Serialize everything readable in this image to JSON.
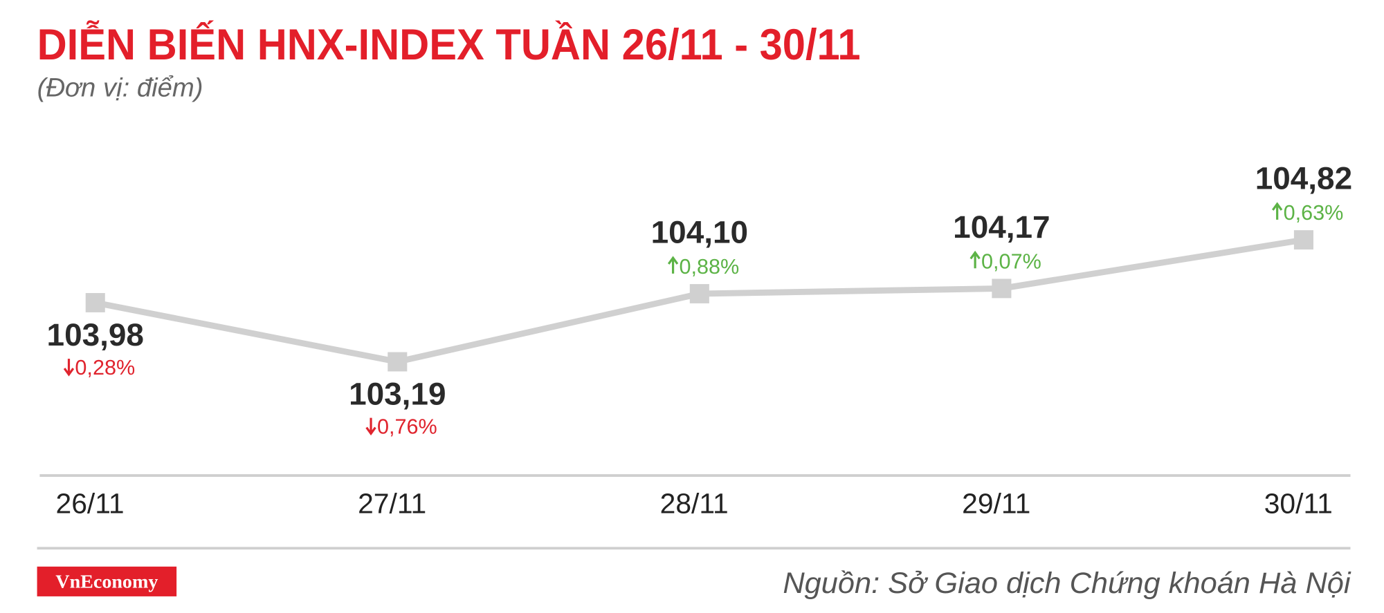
{
  "chart_data": {
    "type": "line",
    "title": "DIỄN BIẾN HNX-INDEX TUẦN 26/11 - 30/11",
    "subtitle": "(Đơn vị: điểm)",
    "categories": [
      "26/11",
      "27/11",
      "28/11",
      "29/11",
      "30/11"
    ],
    "values": [
      103.98,
      103.19,
      104.1,
      104.17,
      104.82
    ],
    "value_labels": [
      "103,98",
      "103,19",
      "104,10",
      "104,17",
      "104,82"
    ],
    "color": "#d0d0d0",
    "changes": {
      "values": [
        -0.28,
        -0.76,
        0.88,
        0.07,
        0.63
      ],
      "value_labels": [
        "0,28%",
        "0,76%",
        "0,88%",
        "0,07%",
        "0,63%"
      ],
      "up_color": "#5cb346",
      "down_color": "#e0242e"
    },
    "ylim": [
      101.67,
      106.27
    ],
    "brand": "VnEconomy",
    "source": "Nguồn: Sở Giao dịch Chứng khoán Hà Nội"
  }
}
